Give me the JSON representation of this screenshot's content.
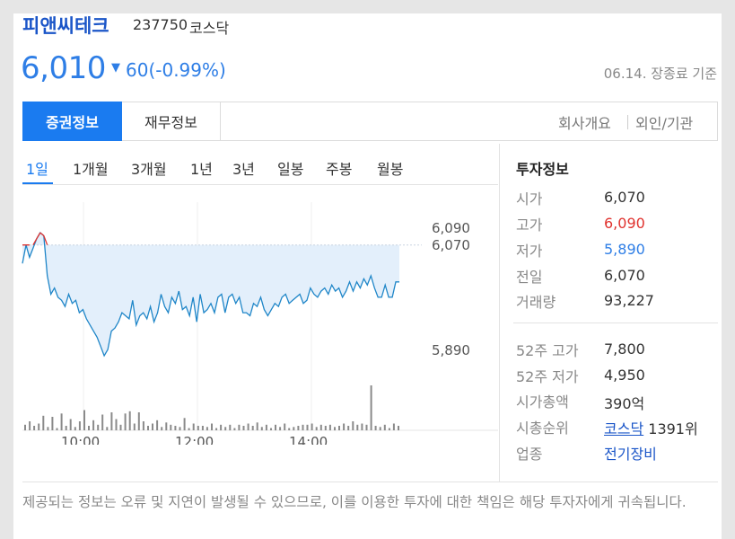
{
  "stock": {
    "name": "피앤씨테크",
    "code": "237750",
    "market": "코스닥",
    "price": "6,010",
    "change_arrow": "▼",
    "change": "60(-0.99%)",
    "asof": "06.14. 장종료 기준",
    "colors": {
      "up": "#e0322e",
      "down": "#2e7ee6",
      "accent": "#1a7bf0"
    }
  },
  "tabs": {
    "active": "증권정보",
    "second": "재무정보",
    "right": [
      "회사개요",
      "외인/기관"
    ]
  },
  "periods": [
    "1일",
    "1개월",
    "3개월",
    "1년",
    "3년",
    "일봉",
    "주봉",
    "월봉"
  ],
  "chart_data": {
    "type": "line",
    "x_ticks": [
      "10:00",
      "12:00",
      "14:00"
    ],
    "y_labels": [
      "6,090",
      "6,070",
      "5,890"
    ],
    "previous_close": 6070,
    "ylim": [
      5890,
      6090
    ],
    "price_series": [
      6040,
      6070,
      6050,
      6065,
      6080,
      6090,
      6085,
      6020,
      5990,
      6000,
      5985,
      5980,
      5970,
      5990,
      5975,
      5980,
      5960,
      5965,
      5950,
      5940,
      5930,
      5920,
      5905,
      5890,
      5900,
      5930,
      5935,
      5945,
      5960,
      5955,
      5950,
      5980,
      5940,
      5955,
      5960,
      5950,
      5970,
      5945,
      5960,
      5990,
      5970,
      5960,
      5985,
      5975,
      5995,
      5965,
      5970,
      5955,
      5985,
      5945,
      5990,
      5960,
      5965,
      5975,
      5960,
      5985,
      5990,
      5960,
      5985,
      5990,
      5975,
      5985,
      5960,
      5960,
      5955,
      5975,
      5970,
      5985,
      5965,
      5955,
      5965,
      5975,
      5970,
      5985,
      5990,
      5975,
      5980,
      5985,
      5990,
      5975,
      5980,
      6000,
      5990,
      5985,
      5995,
      6000,
      5990,
      6005,
      5995,
      6000,
      5985,
      5995,
      6010,
      5995,
      6010,
      6000,
      6015,
      6005,
      6020,
      6000,
      5985,
      5985,
      6005,
      5985,
      5985,
      6010,
      6010
    ],
    "volume_series": [
      5,
      8,
      4,
      6,
      13,
      3,
      12,
      2,
      15,
      4,
      10,
      3,
      8,
      18,
      4,
      9,
      5,
      14,
      3,
      16,
      10,
      5,
      15,
      17,
      6,
      16,
      8,
      4,
      6,
      9,
      3,
      7,
      5,
      4,
      3,
      11,
      2,
      6,
      4,
      4,
      3,
      6,
      2,
      5,
      3,
      5,
      2,
      5,
      4,
      6,
      4,
      7,
      3,
      5,
      2,
      5,
      3,
      6,
      2,
      3,
      4,
      5,
      5,
      6,
      3,
      5,
      4,
      5,
      3,
      4,
      6,
      4,
      8,
      5,
      6,
      5,
      40,
      4,
      3,
      5,
      2,
      6,
      4
    ]
  },
  "invest": {
    "title": "투자정보",
    "rows": [
      {
        "label": "시가",
        "value": "6,070",
        "tone": ""
      },
      {
        "label": "고가",
        "value": "6,090",
        "tone": "up"
      },
      {
        "label": "저가",
        "value": "5,890",
        "tone": "down"
      },
      {
        "label": "전일",
        "value": "6,070",
        "tone": ""
      },
      {
        "label": "거래량",
        "value": "93,227",
        "tone": ""
      }
    ],
    "rows2": [
      {
        "label": "52주 고가",
        "value": "7,800"
      },
      {
        "label": "52주 저가",
        "value": "4,950"
      },
      {
        "label": "시가총액",
        "value": "390",
        "unit": "억"
      }
    ],
    "rank_label": "시총순위",
    "rank_market": "코스닥",
    "rank_value": "1391위",
    "sector_label": "업종",
    "sector_value": "전기장비"
  },
  "disclaimer": "제공되는 정보는 오류 및 지연이 발생될 수 있으므로, 이를 이용한 투자에 대한 책임은 해당 투자자에게 귀속됩니다."
}
